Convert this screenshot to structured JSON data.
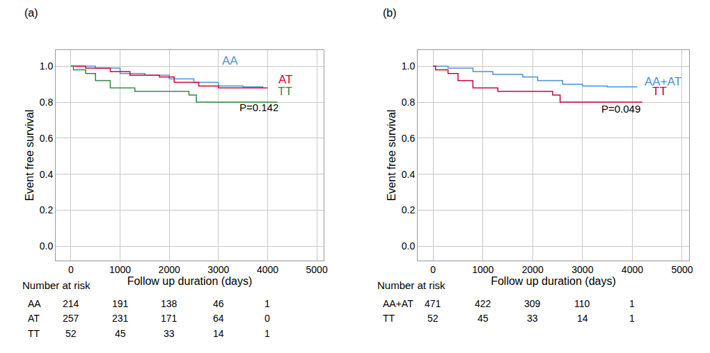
{
  "chart_data": [
    {
      "type": "line",
      "line_style": "step",
      "panel": "(a)",
      "grid": true,
      "x_label": "Follow up duration (days)",
      "y_label": "Event free survival",
      "xlim": [
        -310,
        5140
      ],
      "xticks": [
        0,
        1000,
        2000,
        3000,
        4000,
        5000
      ],
      "ylim": [
        -0.08,
        1.09
      ],
      "yticks": [
        {
          "value": 0,
          "label": "0.0"
        },
        {
          "value": 0.2,
          "label": "0.2"
        },
        {
          "value": 0.4,
          "label": "0.4"
        },
        {
          "value": 0.6,
          "label": "0.6"
        },
        {
          "value": 0.8,
          "label": "0.8"
        },
        {
          "value": 1,
          "label": "1.0"
        }
      ],
      "risk_table_title": "Number at risk",
      "series": [
        {
          "name": "AA",
          "color": "#4a90d9",
          "x": [
            0,
            500,
            1000,
            1500,
            2000,
            2500,
            3000,
            3500,
            3900
          ],
          "values": [
            1.0,
            0.99,
            0.96,
            0.95,
            0.93,
            0.91,
            0.89,
            0.885,
            0.88
          ],
          "at_risk": [
            214,
            191,
            138,
            46,
            1
          ]
        },
        {
          "name": "AT",
          "color": "#d8002e",
          "x": [
            0,
            300,
            800,
            1200,
            1800,
            2100,
            2600,
            3000,
            4000
          ],
          "values": [
            1.0,
            0.99,
            0.97,
            0.95,
            0.94,
            0.91,
            0.89,
            0.88,
            0.88
          ],
          "at_risk": [
            257,
            231,
            171,
            64,
            0
          ]
        },
        {
          "name": "TT",
          "color": "#2e8b3c",
          "x": [
            0,
            50,
            300,
            500,
            800,
            1300,
            2400,
            2550,
            4200
          ],
          "values": [
            1.0,
            0.98,
            0.96,
            0.92,
            0.88,
            0.86,
            0.84,
            0.8,
            0.8
          ],
          "at_risk": [
            52,
            45,
            33,
            14,
            1
          ]
        }
      ],
      "annotations": [
        {
          "text": "AA",
          "x": 3230,
          "y": 1.03,
          "color": "#4a90d9"
        },
        {
          "text": "AT",
          "x": 4360,
          "y": 0.926,
          "color": "#d8002e"
        },
        {
          "text": "TT",
          "x": 4360,
          "y": 0.86,
          "color": "#2e8b3c"
        },
        {
          "text": "P=0.142",
          "x": 3820,
          "y": 0.77,
          "color": "#000000"
        }
      ]
    },
    {
      "type": "line",
      "line_style": "step",
      "panel": "(b)",
      "grid": true,
      "x_label": "Follow up duration (days)",
      "y_label": "Event free survival",
      "xlim": [
        -310,
        5140
      ],
      "xticks": [
        0,
        1000,
        2000,
        3000,
        4000,
        5000
      ],
      "ylim": [
        -0.08,
        1.09
      ],
      "yticks": [
        {
          "value": 0,
          "label": "0.0"
        },
        {
          "value": 0.2,
          "label": "0.2"
        },
        {
          "value": 0.4,
          "label": "0.4"
        },
        {
          "value": 0.6,
          "label": "0.6"
        },
        {
          "value": 0.8,
          "label": "0.8"
        },
        {
          "value": 1,
          "label": "1.0"
        }
      ],
      "risk_table_title": "Number at risk",
      "series": [
        {
          "name": "AA+AT",
          "color": "#4a90d9",
          "x": [
            0,
            300,
            800,
            1200,
            1800,
            2100,
            2600,
            3000,
            3500,
            4100
          ],
          "values": [
            1.0,
            0.99,
            0.97,
            0.955,
            0.94,
            0.92,
            0.9,
            0.89,
            0.885,
            0.885
          ],
          "at_risk": [
            471,
            422,
            309,
            110,
            1
          ]
        },
        {
          "name": "TT",
          "color": "#c8003c",
          "x": [
            0,
            50,
            300,
            500,
            800,
            1300,
            2400,
            2550,
            4200
          ],
          "values": [
            1.0,
            0.98,
            0.96,
            0.92,
            0.88,
            0.86,
            0.84,
            0.8,
            0.8
          ],
          "at_risk": [
            52,
            45,
            33,
            14,
            1
          ]
        }
      ],
      "annotations": [
        {
          "text": "AA+AT",
          "x": 4620,
          "y": 0.915,
          "color": "#4a90d9"
        },
        {
          "text": "TT",
          "x": 4550,
          "y": 0.86,
          "color": "#c8003c"
        },
        {
          "text": "P=0.049",
          "x": 3770,
          "y": 0.765,
          "color": "#000000"
        }
      ]
    }
  ]
}
